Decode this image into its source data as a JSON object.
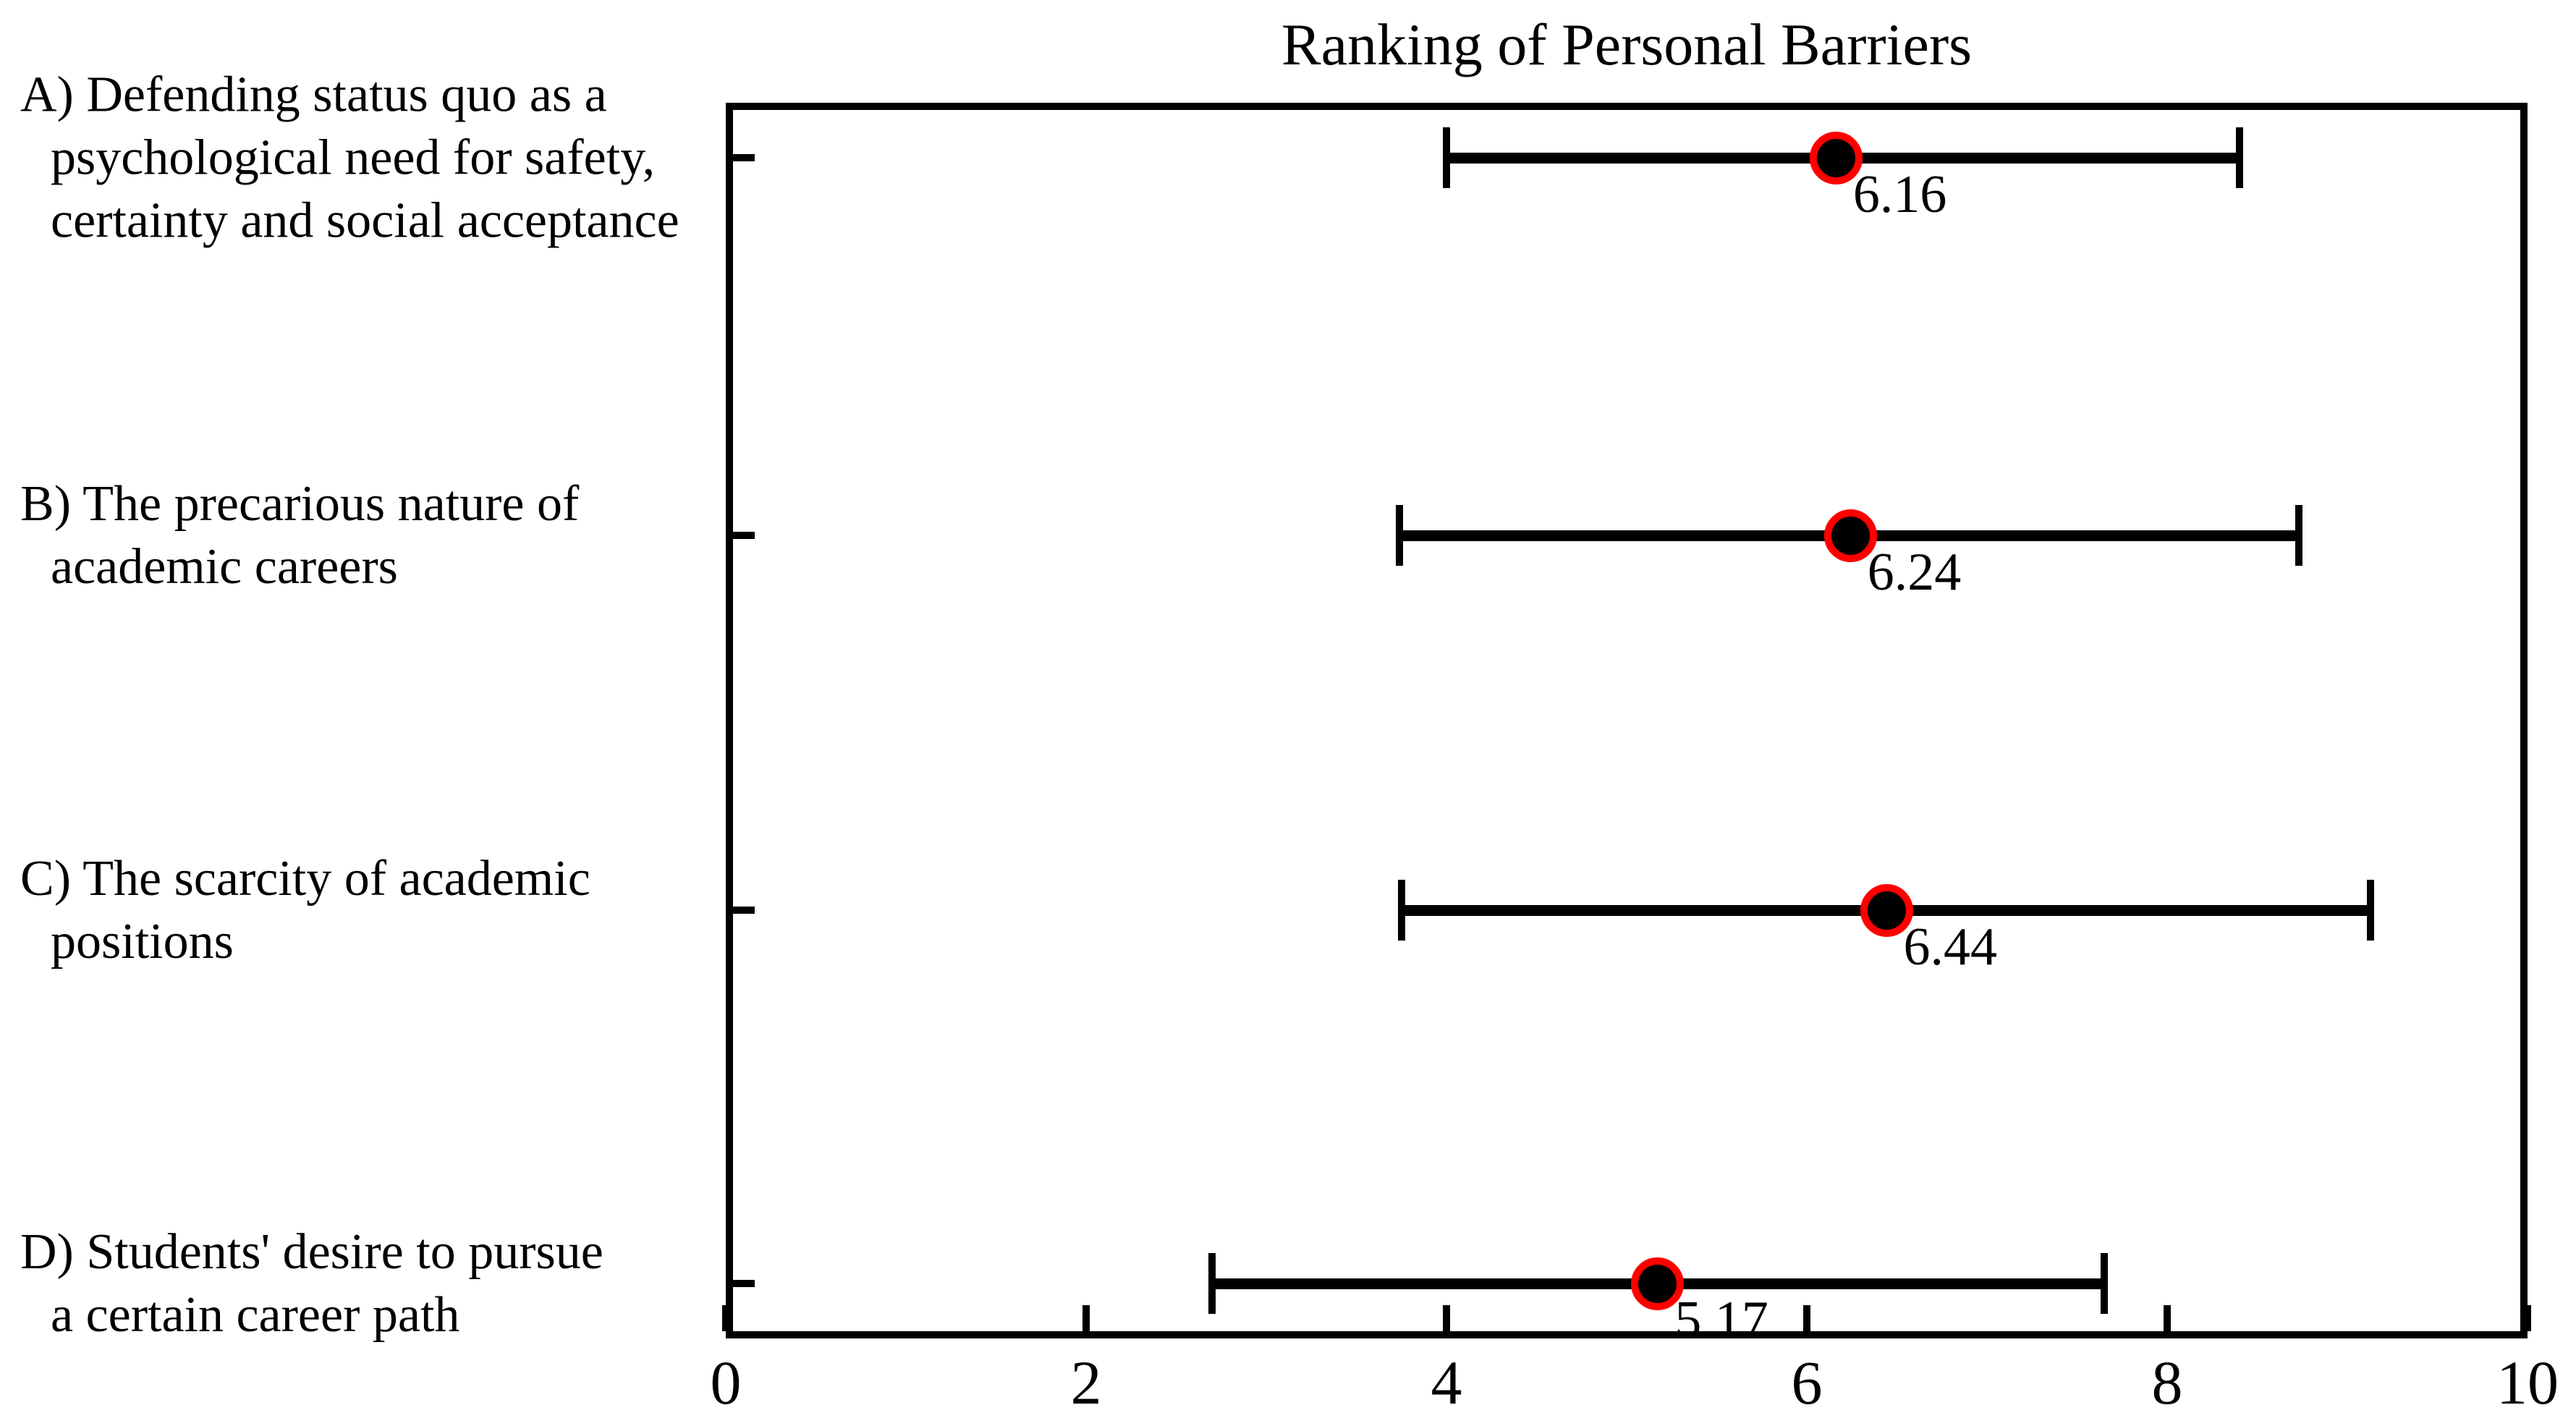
{
  "figure": {
    "background": "#ffffff"
  },
  "chart_data": {
    "type": "scatter",
    "subtype": "horizontal-error-bars",
    "title": "Ranking of Personal Barriers",
    "xlabel": "",
    "ylabel": "",
    "xlim": [
      0,
      10
    ],
    "x_ticks": [
      0,
      2,
      4,
      6,
      8,
      10
    ],
    "x_tick_labels": [
      "0",
      "2",
      "4",
      "6",
      "8",
      "10"
    ],
    "grid": false,
    "legend": "none",
    "colors": {
      "marker_fill": "#000000",
      "marker_ring": "#ff0000",
      "error_bar": "#000000",
      "text": "#000000"
    },
    "categories": [
      {
        "id": "A",
        "label": "A) Defending status quo as a psychological need for safety, certainty and social acceptance",
        "label_lines": [
          "A) Defending status quo as a",
          "psychological need for safety,",
          "certainty and social acceptance"
        ],
        "mean": 6.16,
        "value_label": "6.16",
        "lower": 4.0,
        "upper": 8.4
      },
      {
        "id": "B",
        "label": "B) The precarious nature of academic careers",
        "label_lines": [
          "B) The precarious nature of",
          "academic careers"
        ],
        "mean": 6.24,
        "value_label": "6.24",
        "lower": 3.74,
        "upper": 8.73
      },
      {
        "id": "C",
        "label": "C) The scarcity of academic positions",
        "label_lines": [
          "C) The scarcity of academic",
          "positions"
        ],
        "mean": 6.44,
        "value_label": "6.44",
        "lower": 3.75,
        "upper": 9.13
      },
      {
        "id": "D",
        "label": "D) Students' desire to pursue a certain career path",
        "label_lines": [
          "D) Students' desire to pursue",
          "a certain career path"
        ],
        "mean": 5.17,
        "value_label": "5.17",
        "lower": 2.7,
        "upper": 7.65
      }
    ]
  }
}
